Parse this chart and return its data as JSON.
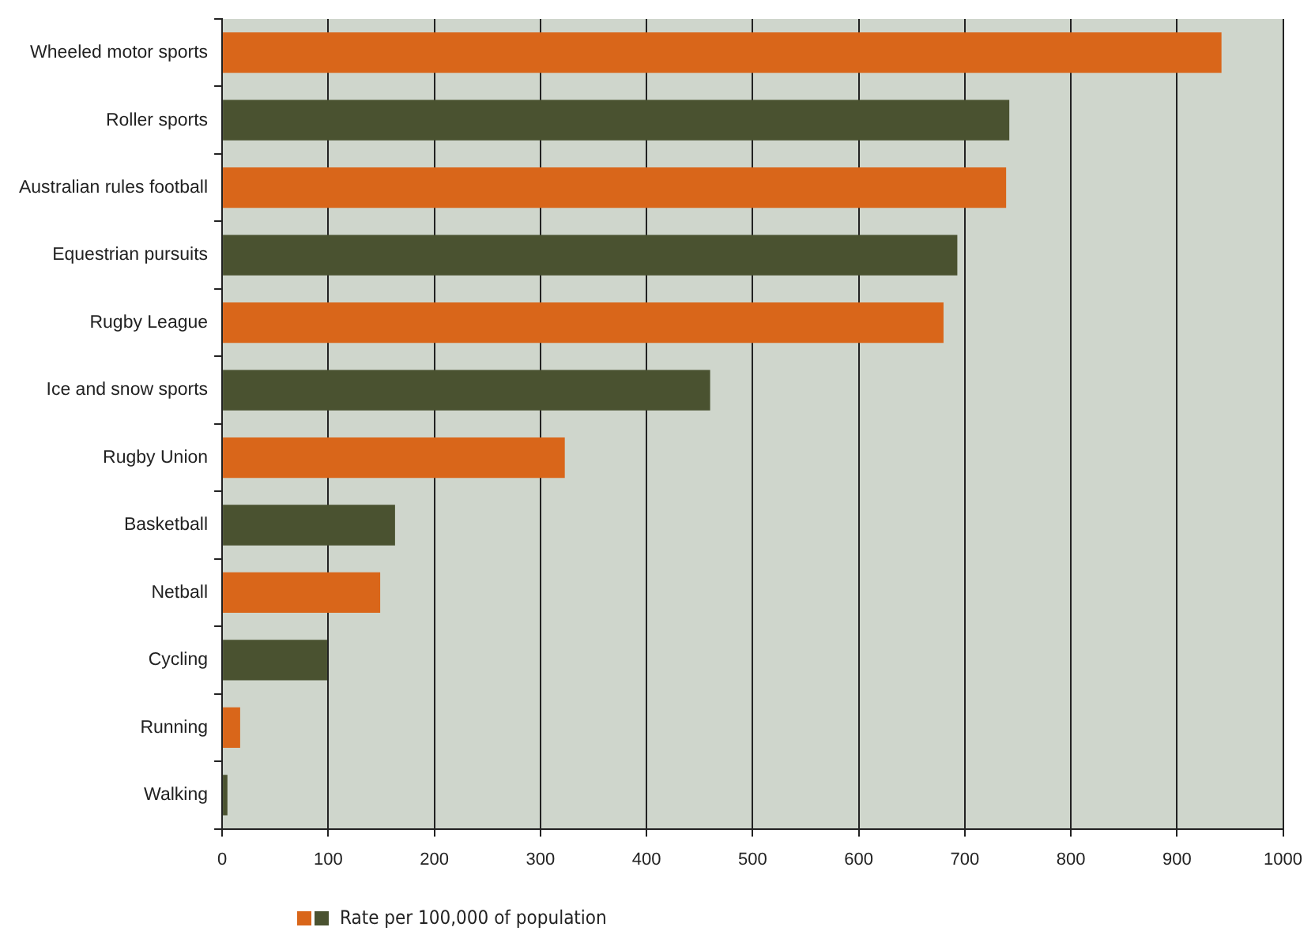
{
  "chart_data": {
    "type": "bar",
    "orientation": "horizontal",
    "categories": [
      "Wheeled motor sports",
      "Roller sports",
      "Australian rules football",
      "Equestrian pursuits",
      "Rugby League",
      "Ice and snow sports",
      "Rugby Union",
      "Basketball",
      "Netball",
      "Cycling",
      "Running",
      "Walking"
    ],
    "series": [
      {
        "name": "Rate per 100,000 of population",
        "values": [
          942,
          742,
          739,
          693,
          680,
          460,
          323,
          163,
          149,
          99,
          17,
          5
        ],
        "colors": [
          "#d9661a",
          "#4a5230",
          "#d9661a",
          "#4a5230",
          "#d9661a",
          "#4a5230",
          "#d9661a",
          "#4a5230",
          "#d9661a",
          "#4a5230",
          "#d9661a",
          "#4a5230"
        ]
      }
    ],
    "xlim": [
      0,
      1000
    ],
    "xticks": [
      0,
      100,
      200,
      300,
      400,
      500,
      600,
      700,
      800,
      900,
      1000
    ],
    "grid": "x",
    "legend": "bottom left"
  }
}
